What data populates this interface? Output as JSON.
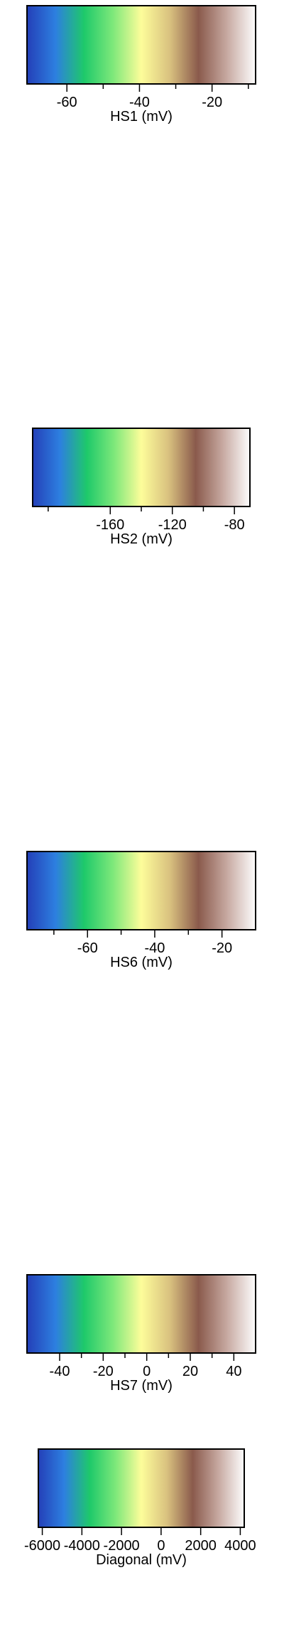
{
  "chart_data": [
    {
      "type": "colorbar",
      "xlabel": "HS1 (mV)",
      "range": [
        -71,
        -8
      ],
      "tick_labels": [
        "-60",
        "-40",
        "-20"
      ],
      "tick_values": [
        -60,
        -40,
        -20
      ],
      "minor_tick_values": [
        -50,
        -30,
        -10
      ],
      "colormap": [
        "#2440b8",
        "#2d7fe0",
        "#1ec96a",
        "#7de87a",
        "#fdfd9a",
        "#d9c17f",
        "#8a5a4c",
        "#c7a9a1",
        "#fdfdfd"
      ]
    },
    {
      "type": "colorbar",
      "xlabel": "HS2 (mV)",
      "range": [
        -210,
        -70
      ],
      "tick_labels": [
        "-160",
        "-120",
        "-80"
      ],
      "tick_values": [
        -160,
        -120,
        -80
      ],
      "minor_tick_values": [
        -200,
        -140,
        -100
      ],
      "colormap": [
        "#2440b8",
        "#2d7fe0",
        "#1ec96a",
        "#7de87a",
        "#fdfd9a",
        "#d9c17f",
        "#8a5a4c",
        "#c7a9a1",
        "#fdfdfd"
      ]
    },
    {
      "type": "colorbar",
      "xlabel": "HS6 (mV)",
      "range": [
        -78,
        -10
      ],
      "tick_labels": [
        "-60",
        "-40",
        "-20"
      ],
      "tick_values": [
        -60,
        -40,
        -20
      ],
      "minor_tick_values": [
        -70,
        -50,
        -30
      ],
      "colormap": [
        "#2440b8",
        "#2d7fe0",
        "#1ec96a",
        "#7de87a",
        "#fdfd9a",
        "#d9c17f",
        "#8a5a4c",
        "#c7a9a1",
        "#fdfdfd"
      ]
    },
    {
      "type": "colorbar",
      "xlabel": "HS7 (mV)",
      "range": [
        -55,
        50
      ],
      "tick_labels": [
        "-40",
        "-20",
        "0",
        "20",
        "40"
      ],
      "tick_values": [
        -40,
        -20,
        0,
        20,
        40
      ],
      "minor_tick_values": [
        -30,
        -10,
        10,
        30
      ],
      "colormap": [
        "#2440b8",
        "#2d7fe0",
        "#1ec96a",
        "#7de87a",
        "#fdfd9a",
        "#d9c17f",
        "#8a5a4c",
        "#c7a9a1",
        "#fdfdfd"
      ]
    },
    {
      "type": "colorbar",
      "xlabel": "Diagonal (mV)",
      "range": [
        -6200,
        4200
      ],
      "tick_labels": [
        "-6000",
        "-4000",
        "-2000",
        "0",
        "2000",
        "4000"
      ],
      "tick_values": [
        -6000,
        -4000,
        -2000,
        0,
        2000,
        4000
      ],
      "minor_tick_values": [],
      "colormap": [
        "#2440b8",
        "#2d7fe0",
        "#1ec96a",
        "#7de87a",
        "#fdfd9a",
        "#d9c17f",
        "#8a5a4c",
        "#c7a9a1",
        "#fdfdfd"
      ]
    }
  ]
}
